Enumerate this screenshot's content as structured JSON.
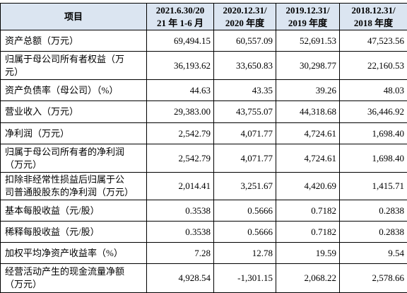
{
  "table": {
    "header": [
      "项目",
      "2021.6.30/20\n21 年 1-6 月",
      "2020.12.31/\n2020 年度",
      "2019.12.31/\n2019 年度",
      "2018.12.31/\n2018 年度"
    ],
    "rows": [
      {
        "label": "资产总额（万元）",
        "values": [
          "69,494.15",
          "60,557.09",
          "52,691.53",
          "47,523.56"
        ]
      },
      {
        "label": "归属于母公司所有者权益（万\n元）",
        "values": [
          "36,193.62",
          "33,650.83",
          "30,298.77",
          "22,160.53"
        ]
      },
      {
        "label": "资产负债率（母公司）（%）",
        "values": [
          "44.63",
          "43.35",
          "39.26",
          "48.03"
        ]
      },
      {
        "label": "营业收入（万元）",
        "values": [
          "29,383.00",
          "43,755.07",
          "44,318.68",
          "36,446.92"
        ]
      },
      {
        "label": "净利润（万元）",
        "values": [
          "2,542.79",
          "4,071.77",
          "4,724.61",
          "1,698.40"
        ]
      },
      {
        "label": "归属于母公司所有者的净利润\n（万元）",
        "values": [
          "2,542.79",
          "4,071.77",
          "4,724.61",
          "1,698.40"
        ]
      },
      {
        "label": "扣除非经常性损益后归属于公\n司普通股股东的净利润（万元）",
        "values": [
          "2,014.41",
          "3,251.67",
          "4,420.69",
          "1,415.71"
        ]
      },
      {
        "label": "基本每股收益（元/股）",
        "values": [
          "0.3538",
          "0.5666",
          "0.7182",
          "0.2838"
        ]
      },
      {
        "label": "稀释每股收益（元/股）",
        "values": [
          "0.3538",
          "0.5666",
          "0.7182",
          "0.2838"
        ]
      },
      {
        "label": "加权平均净资产收益率（%）",
        "values": [
          "7.28",
          "12.78",
          "19.59",
          "9.54"
        ]
      },
      {
        "label": "经营活动产生的现金流量净额\n（万元）",
        "values": [
          "4,928.54",
          "-1,301.15",
          "2,068.22",
          "2,578.66"
        ]
      }
    ]
  }
}
